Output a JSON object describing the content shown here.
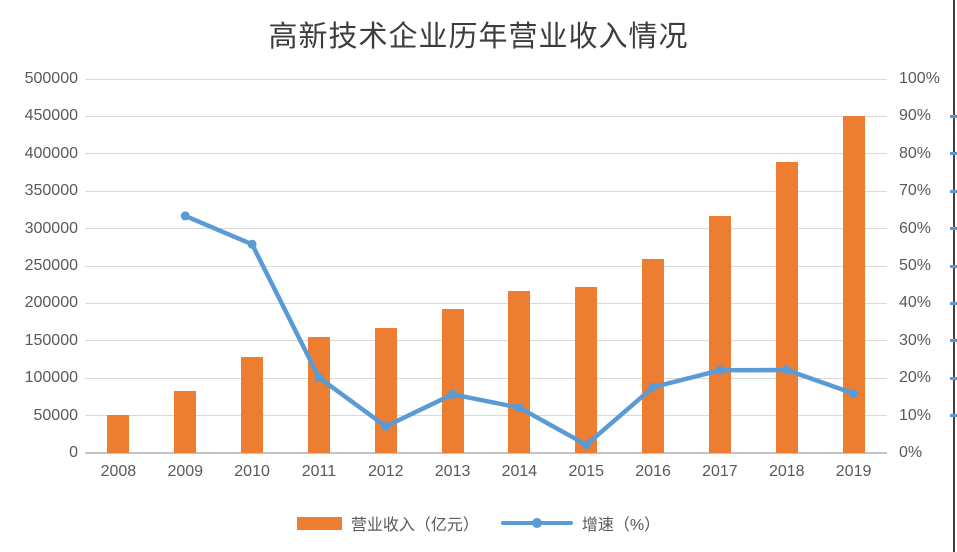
{
  "page": {
    "background": "#ffffff",
    "right_border_color": "#404040"
  },
  "chart_data": {
    "type": "combo",
    "title": "高新技术企业历年营业收入情况",
    "categories": [
      "2008",
      "2009",
      "2010",
      "2011",
      "2012",
      "2013",
      "2014",
      "2015",
      "2016",
      "2017",
      "2018",
      "2019"
    ],
    "series": [
      {
        "name": "营业收入（亿元）",
        "type": "bar",
        "axis": "left",
        "color": "#ED7D31",
        "values": [
          51000,
          83000,
          129000,
          155000,
          167000,
          193000,
          216000,
          222000,
          260000,
          317000,
          389000,
          450000
        ]
      },
      {
        "name": "增速（%）",
        "type": "line",
        "axis": "right",
        "color": "#5B9BD5",
        "values": [
          null,
          63.4,
          55.8,
          20.2,
          7.1,
          15.7,
          12.1,
          2.2,
          17.6,
          22.1,
          22.2,
          15.9
        ]
      }
    ],
    "left_axis": {
      "min": 0,
      "max": 500000,
      "step": 50000,
      "tick_labels": [
        "0",
        "50000",
        "100000",
        "150000",
        "200000",
        "250000",
        "300000",
        "350000",
        "400000",
        "450000",
        "500000"
      ]
    },
    "right_axis": {
      "min": 0,
      "max": 100,
      "step": 10,
      "tick_labels": [
        "0%",
        "10%",
        "20%",
        "30%",
        "40%",
        "50%",
        "60%",
        "70%",
        "80%",
        "90%",
        "100%"
      ]
    },
    "grid": true,
    "gridline_color": "#d9d9d9",
    "axis_text_color": "#595959",
    "legend_position": "bottom"
  }
}
